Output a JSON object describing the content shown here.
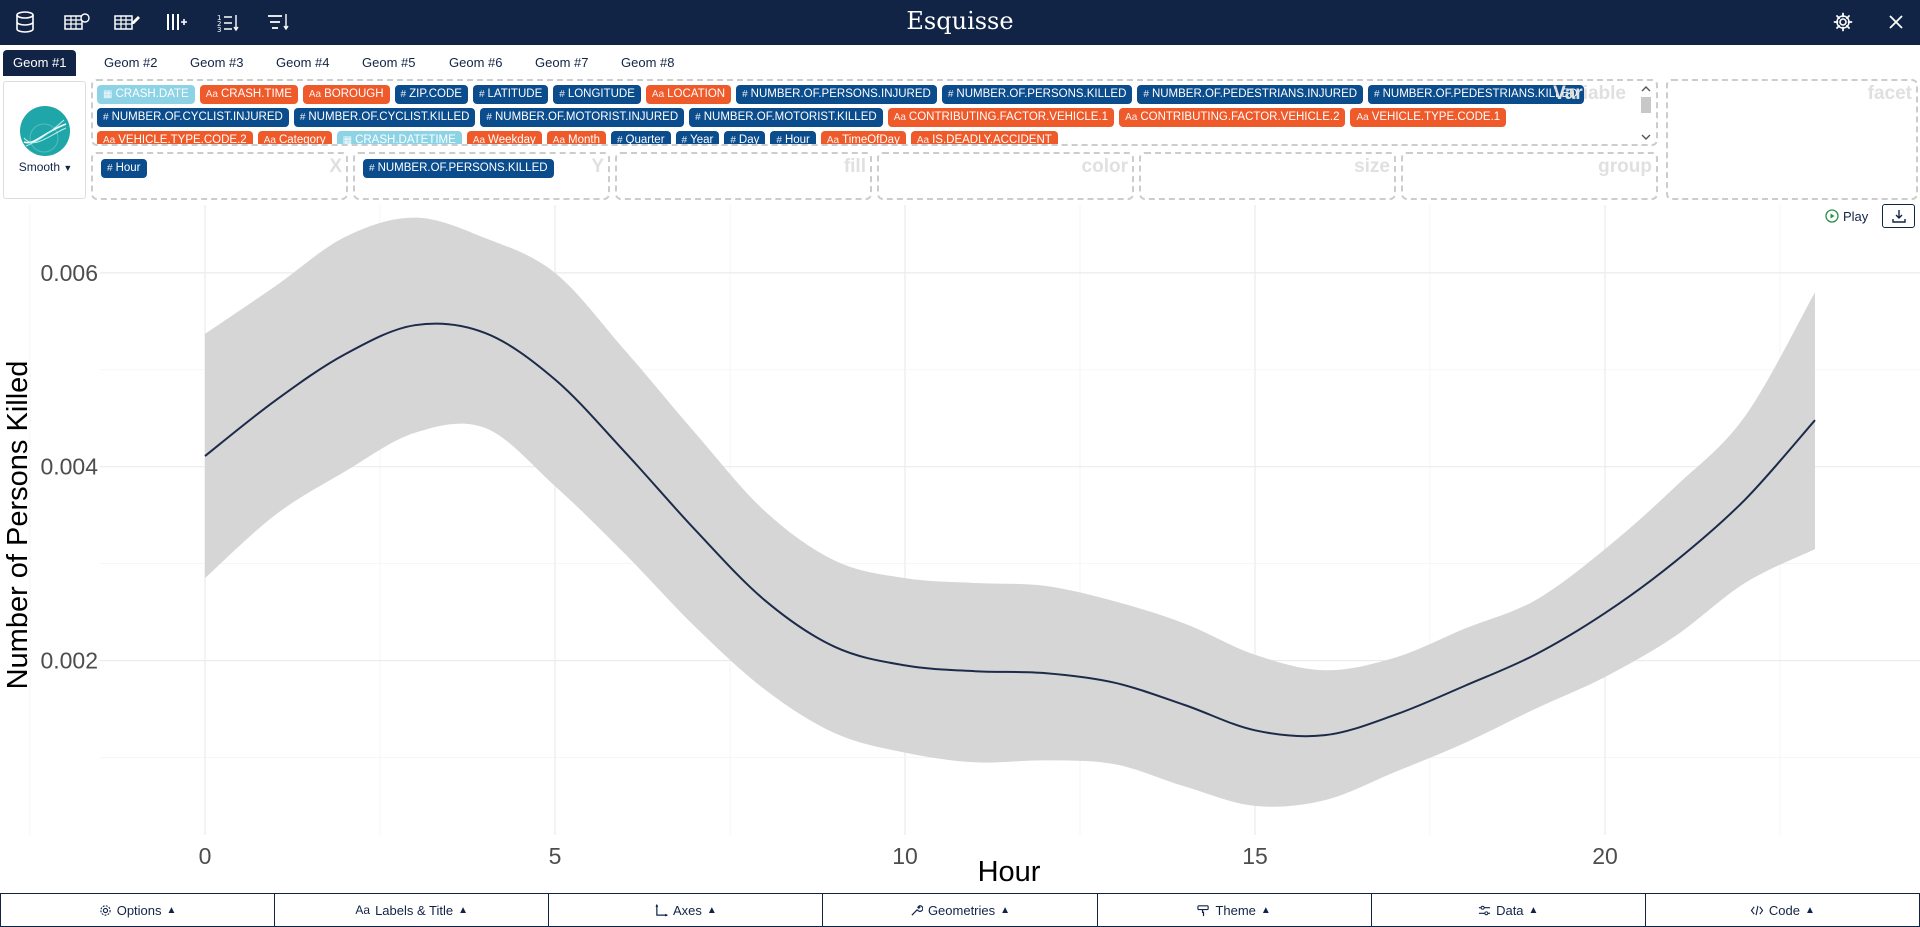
{
  "app": {
    "title": "Esquisse"
  },
  "navbar": {
    "left_icons": [
      "database-icon",
      "table-import-icon",
      "table-edit-icon",
      "column-add-icon",
      "sort-numeric-icon",
      "list-filter-icon"
    ],
    "right_icons": [
      "gear-icon",
      "close-icon"
    ]
  },
  "geom_tabs": [
    "Geom #1",
    "Geom #2",
    "Geom #3",
    "Geom #4",
    "Geom #5",
    "Geom #6",
    "Geom #7",
    "Geom #8"
  ],
  "geom_select": {
    "label": "Smooth"
  },
  "variables": {
    "label": "Variable",
    "chips": [
      {
        "name": "CRASH.DATE",
        "type": "date"
      },
      {
        "name": "CRASH.TIME",
        "type": "character"
      },
      {
        "name": "BOROUGH",
        "type": "character"
      },
      {
        "name": "ZIP.CODE",
        "type": "numeric"
      },
      {
        "name": "LATITUDE",
        "type": "numeric"
      },
      {
        "name": "LONGITUDE",
        "type": "numeric"
      },
      {
        "name": "LOCATION",
        "type": "character"
      },
      {
        "name": "NUMBER.OF.PERSONS.INJURED",
        "type": "numeric"
      },
      {
        "name": "NUMBER.OF.PERSONS.KILLED",
        "type": "numeric"
      },
      {
        "name": "NUMBER.OF.PEDESTRIANS.INJURED",
        "type": "numeric"
      },
      {
        "name": "NUMBER.OF.PEDESTRIANS.KILLED",
        "type": "numeric"
      },
      {
        "name": "NUMBER.OF.CYCLIST.INJURED",
        "type": "numeric"
      },
      {
        "name": "NUMBER.OF.CYCLIST.KILLED",
        "type": "numeric"
      },
      {
        "name": "NUMBER.OF.MOTORIST.INJURED",
        "type": "numeric"
      },
      {
        "name": "NUMBER.OF.MOTORIST.KILLED",
        "type": "numeric"
      },
      {
        "name": "CONTRIBUTING.FACTOR.VEHICLE.1",
        "type": "character"
      },
      {
        "name": "CONTRIBUTING.FACTOR.VEHICLE.2",
        "type": "character"
      },
      {
        "name": "VEHICLE.TYPE.CODE.1",
        "type": "character"
      },
      {
        "name": "VEHICLE.TYPE.CODE.2",
        "type": "character"
      },
      {
        "name": "Category",
        "type": "character"
      },
      {
        "name": "CRASH.DATETIME",
        "type": "date"
      },
      {
        "name": "Weekday",
        "type": "character"
      },
      {
        "name": "Month",
        "type": "character"
      },
      {
        "name": "Quarter",
        "type": "numeric"
      },
      {
        "name": "Year",
        "type": "numeric"
      },
      {
        "name": "Day",
        "type": "numeric"
      },
      {
        "name": "Hour",
        "type": "numeric"
      },
      {
        "name": "TimeOfDay",
        "type": "character"
      },
      {
        "name": "IS.DEADLY.ACCIDENT",
        "type": "character"
      }
    ]
  },
  "dropzones": [
    {
      "label": "X",
      "chip": "Hour"
    },
    {
      "label": "Y",
      "chip": "NUMBER.OF.PERSONS.KILLED"
    },
    {
      "label": "fill",
      "chip": ""
    },
    {
      "label": "color",
      "chip": ""
    },
    {
      "label": "size",
      "chip": ""
    },
    {
      "label": "group",
      "chip": ""
    }
  ],
  "facet": {
    "label": "facet"
  },
  "play": {
    "label": "Play"
  },
  "colors": {
    "navy": "#112446",
    "numeric": "#0b4c8c",
    "character": "#ef5a2b",
    "date": "#8dd3e6",
    "ribbon": "#d6d6d6"
  },
  "chart_data": {
    "type": "line",
    "xlabel": "Hour",
    "ylabel": "Number of Persons Killed",
    "xlim": [
      -1.5,
      24.5
    ],
    "ylim": [
      0.0002,
      0.0067
    ],
    "xticks": [
      0,
      5,
      10,
      15,
      20
    ],
    "yticks": [
      0.002,
      0.004,
      0.006
    ],
    "ytick_labels": [
      "0.002",
      "0.004",
      "0.006"
    ],
    "grid": true,
    "x": [
      0,
      1,
      2,
      3,
      4,
      5,
      6,
      7,
      8,
      9,
      10,
      11,
      12,
      13,
      14,
      15,
      16,
      17,
      18,
      19,
      20,
      21,
      22,
      23
    ],
    "series": [
      {
        "values": [
          0.00411,
          0.00468,
          0.00516,
          0.00546,
          0.00538,
          0.0049,
          0.00415,
          0.00335,
          0.00262,
          0.00214,
          0.00195,
          0.00189,
          0.00187,
          0.00177,
          0.00154,
          0.00128,
          0.00123,
          0.00144,
          0.00174,
          0.00206,
          0.00249,
          0.00302,
          0.00366,
          0.00448
        ],
        "lower": [
          0.00285,
          0.0035,
          0.00395,
          0.00435,
          0.0044,
          0.0038,
          0.0031,
          0.00235,
          0.0017,
          0.00125,
          0.00105,
          0.00095,
          0.00097,
          0.00093,
          0.0007,
          0.0005,
          0.00056,
          0.00085,
          0.00115,
          0.0015,
          0.00183,
          0.00225,
          0.0028,
          0.00315
        ],
        "upper": [
          0.00537,
          0.00586,
          0.00637,
          0.00657,
          0.00636,
          0.006,
          0.0052,
          0.00435,
          0.00354,
          0.00303,
          0.00285,
          0.0028,
          0.00277,
          0.00261,
          0.00238,
          0.00206,
          0.0019,
          0.00203,
          0.00233,
          0.00262,
          0.00315,
          0.00379,
          0.00452,
          0.0058
        ]
      }
    ]
  },
  "bottom_bar": [
    {
      "label": "Options",
      "icon": "gear-icon"
    },
    {
      "label": "Labels & Title",
      "icon": "text-icon"
    },
    {
      "label": "Axes",
      "icon": "axes-icon"
    },
    {
      "label": "Geometries",
      "icon": "wrench-icon"
    },
    {
      "label": "Theme",
      "icon": "brush-icon"
    },
    {
      "label": "Data",
      "icon": "sliders-icon"
    },
    {
      "label": "Code",
      "icon": "code-icon"
    }
  ]
}
